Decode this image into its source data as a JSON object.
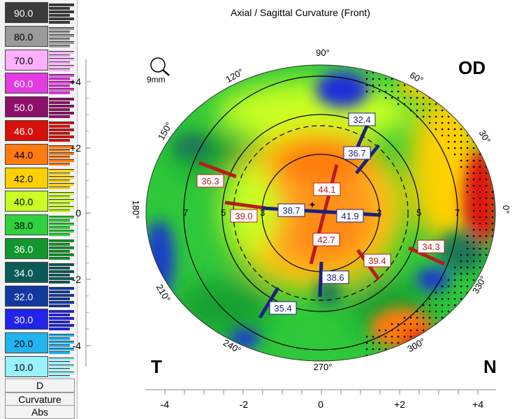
{
  "title": "Axial / Sagittal Curvature (Front)",
  "eye": "OD",
  "temporal": "T",
  "nasal": "N",
  "zoom": {
    "icon": "magnifier-icon",
    "label": "9mm"
  },
  "legend": {
    "scale": [
      {
        "value": "90.0",
        "color": "#3a3a3a",
        "text": "#ffffff"
      },
      {
        "value": "80.0",
        "color": "#9a9a9a",
        "text": "#000000"
      },
      {
        "value": "70.0",
        "color": "#ffb0ff",
        "text": "#000000"
      },
      {
        "value": "60.0",
        "color": "#e23ce0",
        "text": "#ffffff"
      },
      {
        "value": "50.0",
        "color": "#8c1069",
        "text": "#ffffff"
      },
      {
        "value": "46.0",
        "color": "#d8100c",
        "text": "#ffffff"
      },
      {
        "value": "44.0",
        "color": "#ff7a10",
        "text": "#000000"
      },
      {
        "value": "42.0",
        "color": "#ffd000",
        "text": "#000000"
      },
      {
        "value": "40.0",
        "color": "#c8ff20",
        "text": "#000000"
      },
      {
        "value": "38.0",
        "color": "#30d040",
        "text": "#000000"
      },
      {
        "value": "36.0",
        "color": "#12962e",
        "text": "#ffffff"
      },
      {
        "value": "34.0",
        "color": "#0c5a58",
        "text": "#ffffff"
      },
      {
        "value": "32.0",
        "color": "#1238a0",
        "text": "#ffffff"
      },
      {
        "value": "30.0",
        "color": "#2222e8",
        "text": "#ffffff"
      },
      {
        "value": "20.0",
        "color": "#22b4ee",
        "text": "#000000"
      },
      {
        "value": "10.0",
        "color": "#9af2ff",
        "text": "#000000"
      }
    ],
    "unit": "D",
    "type": "Curvature",
    "mode": "Abs"
  },
  "axes": {
    "y_ticks": [
      "+4",
      "+2",
      "0",
      "-2",
      "-4"
    ],
    "x_ticks": [
      "-4",
      "-2",
      "0",
      "+2",
      "+4"
    ]
  },
  "angles": [
    "90°",
    "60°",
    "30°",
    "0°",
    "330°",
    "300°",
    "270°",
    "240°",
    "210°",
    "180°",
    "150°",
    "120°"
  ],
  "ring_labels": [
    "7",
    "5",
    "3",
    "3",
    "5",
    "7"
  ],
  "readings": [
    {
      "value": "32.4",
      "kind": "flat"
    },
    {
      "value": "36.7",
      "kind": "flat"
    },
    {
      "value": "36.3",
      "kind": "steep"
    },
    {
      "value": "44.1",
      "kind": "steep"
    },
    {
      "value": "39.0",
      "kind": "steep"
    },
    {
      "value": "38.7",
      "kind": "flat"
    },
    {
      "value": "41.9",
      "kind": "flat"
    },
    {
      "value": "42.7",
      "kind": "steep"
    },
    {
      "value": "39.4",
      "kind": "steep"
    },
    {
      "value": "34.3",
      "kind": "steep"
    },
    {
      "value": "38.6",
      "kind": "flat"
    },
    {
      "value": "35.4",
      "kind": "flat"
    }
  ]
}
